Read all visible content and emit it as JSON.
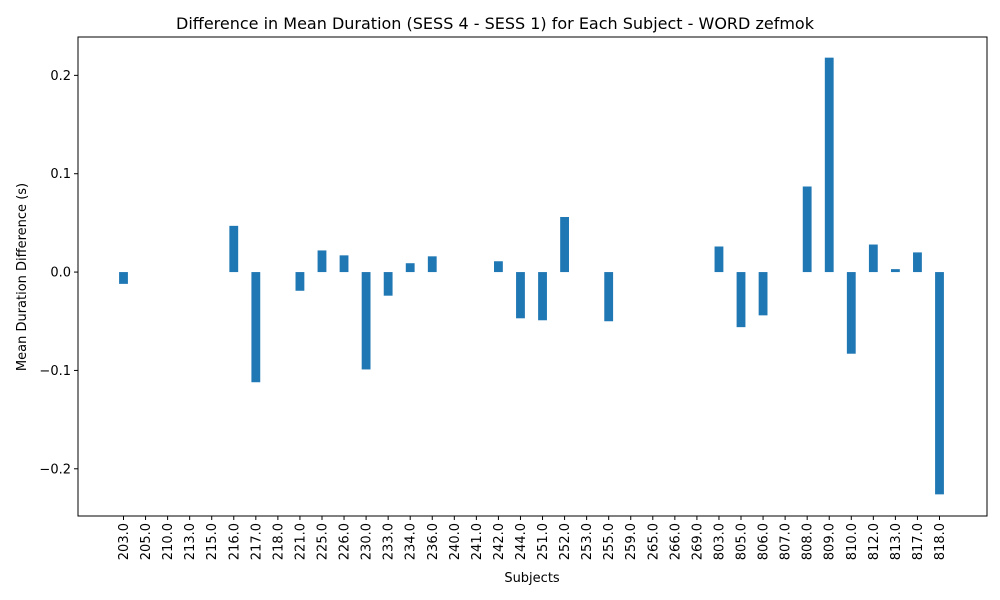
{
  "chart_data": {
    "type": "bar",
    "title": "Difference in Mean Duration (SESS 4 - SESS 1) for Each Subject - WORD zefmok",
    "xlabel": "Subjects",
    "ylabel": "Mean Duration Difference (s)",
    "ylim": [
      -0.248,
      0.239
    ],
    "yticks": [
      -0.2,
      -0.1,
      0.0,
      0.1,
      0.2
    ],
    "ytick_labels": [
      "−0.2",
      "−0.1",
      "0.0",
      "0.1",
      "0.2"
    ],
    "grid": false,
    "bar_color": "#1f77b4",
    "categories": [
      "203.0",
      "205.0",
      "210.0",
      "213.0",
      "215.0",
      "216.0",
      "217.0",
      "218.0",
      "221.0",
      "225.0",
      "226.0",
      "230.0",
      "233.0",
      "234.0",
      "236.0",
      "240.0",
      "241.0",
      "242.0",
      "244.0",
      "251.0",
      "252.0",
      "253.0",
      "255.0",
      "259.0",
      "265.0",
      "266.0",
      "269.0",
      "803.0",
      "805.0",
      "806.0",
      "807.0",
      "808.0",
      "809.0",
      "810.0",
      "812.0",
      "813.0",
      "817.0",
      "818.0"
    ],
    "values": [
      -0.012,
      0,
      0,
      0,
      0,
      0.047,
      -0.112,
      0,
      -0.019,
      0.022,
      0.017,
      -0.099,
      -0.024,
      0.009,
      0.016,
      0,
      0,
      0.011,
      -0.047,
      -0.049,
      0.056,
      0,
      -0.05,
      0,
      0,
      0,
      0,
      0.026,
      -0.056,
      -0.044,
      0,
      0.087,
      0.218,
      -0.083,
      0.028,
      0.003,
      0.02,
      -0.226
    ]
  }
}
